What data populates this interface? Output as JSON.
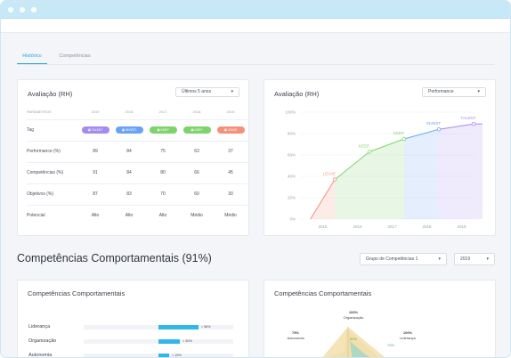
{
  "tabs": [
    {
      "label": "Histórico"
    },
    {
      "label": "Competências"
    }
  ],
  "evaluation_table": {
    "title": "Avaliação (RH)",
    "select_value": "Últimos 5 anos",
    "param_header": "PARÂMETROS",
    "years": [
      "2019",
      "2018",
      "2017",
      "2016",
      "2015"
    ],
    "rows": {
      "tag": {
        "label": "Tag",
        "values": [
          "TALENT",
          "INVEST",
          "KEEP",
          "KEEP",
          "LEAVE"
        ]
      },
      "performance": {
        "label": "Performance (%)",
        "values": [
          "89",
          "84",
          "75",
          "63",
          "37"
        ]
      },
      "competencias": {
        "label": "Competências (%)",
        "values": [
          "91",
          "84",
          "80",
          "66",
          "45"
        ]
      },
      "objetivos": {
        "label": "Objetivos (%)",
        "values": [
          "87",
          "83",
          "70",
          "60",
          "30"
        ]
      },
      "potencial": {
        "label": "Potencial",
        "values": [
          "Alto",
          "Alto",
          "Alto",
          "Médio",
          "Médio"
        ]
      }
    }
  },
  "tag_colors": {
    "TALENT": "#a58bf0",
    "INVEST": "#6aa3f5",
    "KEEP": "#7fd36e",
    "LEAVE": "#f4907c"
  },
  "evaluation_chart": {
    "title": "Avaliação (RH)",
    "select_value": "Performance"
  },
  "chart_data": {
    "type": "area",
    "x": [
      "2015",
      "2016",
      "2017",
      "2018",
      "2019"
    ],
    "values": [
      37,
      63,
      75,
      84,
      89
    ],
    "point_labels": [
      "LEAVE",
      "KEEP",
      "KEEP",
      "INVEST",
      "TALENT"
    ],
    "y_ticks": [
      "0%",
      "20%",
      "40%",
      "60%",
      "80%",
      "100%"
    ],
    "ylim": [
      0,
      100
    ],
    "grid": true,
    "zone_colors": [
      "#f4907c",
      "#7fd36e",
      "#7fd36e",
      "#6aa3f5",
      "#a58bf0"
    ]
  },
  "section": {
    "title": "Competências Comportamentais (91%)",
    "group_select": "Grupo de Competências 1",
    "year_select": "2019"
  },
  "behavior_bars": {
    "title": "Competências Comportamentais",
    "items": [
      {
        "label": "Liderança",
        "value": 56,
        "value_label": "< 56%"
      },
      {
        "label": "Organização",
        "value": 30,
        "value_label": "< 30%"
      },
      {
        "label": "Autonomia",
        "value": 15,
        "value_label": "< 15%"
      }
    ]
  },
  "behavior_radar": {
    "title": "Competências Comportamentais",
    "axes": [
      {
        "percent": "100%",
        "label": "Organização"
      },
      {
        "percent": "75%",
        "label": "Autonomia"
      },
      {
        "percent": "100%",
        "label": "Liderança"
      }
    ],
    "inner_values": [
      "90%",
      "70%"
    ]
  }
}
